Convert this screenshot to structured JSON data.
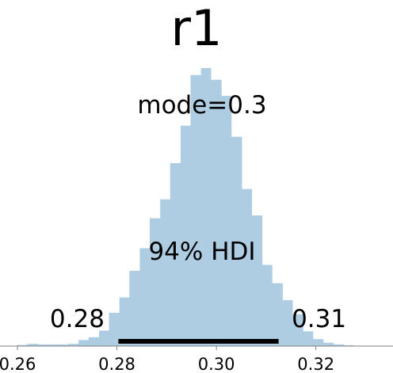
{
  "chart_data": {
    "type": "bar",
    "title": "r1",
    "xlabel": "",
    "ylabel": "",
    "xlim": [
      0.2565,
      0.3355
    ],
    "ylim": [
      0,
      1.0
    ],
    "grid": false,
    "bar_color": "#aecde3",
    "hdi_color": "#000000",
    "axis_color": "#808080",
    "x_ticks": [
      0.26,
      0.28,
      0.3,
      0.32
    ],
    "x_tick_labels": [
      "0.26",
      "0.28",
      "0.30",
      "0.32"
    ],
    "bin_edges": [
      0.26,
      0.262,
      0.2641,
      0.2661,
      0.2682,
      0.2702,
      0.2723,
      0.2743,
      0.2764,
      0.2784,
      0.2805,
      0.2825,
      0.2846,
      0.2866,
      0.2887,
      0.2907,
      0.2928,
      0.2948,
      0.2969,
      0.2989,
      0.301,
      0.303,
      0.3051,
      0.3071,
      0.3092,
      0.3112,
      0.3133,
      0.3153,
      0.3174,
      0.3194,
      0.3215,
      0.3235,
      0.3256,
      0.3276
    ],
    "values": [
      0.004,
      0.008,
      0.006,
      0.006,
      0.006,
      0.008,
      0.022,
      0.032,
      0.056,
      0.12,
      0.175,
      0.271,
      0.352,
      0.46,
      0.528,
      0.658,
      0.793,
      0.975,
      1.0,
      0.958,
      0.9,
      0.753,
      0.565,
      0.47,
      0.292,
      0.226,
      0.165,
      0.114,
      0.053,
      0.025,
      0.012,
      0.006,
      0.003
    ],
    "annotations": {
      "mode_label": "mode=0.3",
      "hdi_label": "94% HDI",
      "hdi_low": 0.2803,
      "hdi_high": 0.3125,
      "hdi_low_label": "0.28",
      "hdi_high_label": "0.31"
    }
  }
}
